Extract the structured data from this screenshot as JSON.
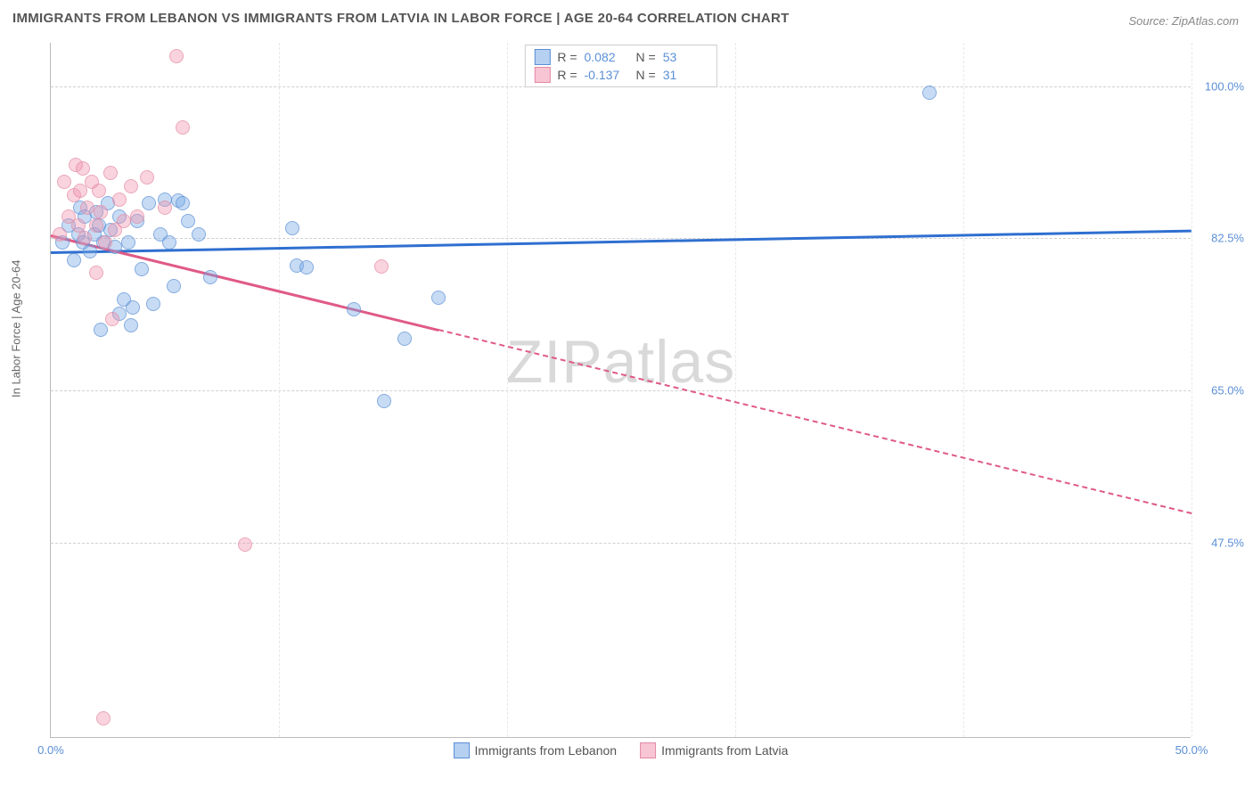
{
  "title": "IMMIGRANTS FROM LEBANON VS IMMIGRANTS FROM LATVIA IN LABOR FORCE | AGE 20-64 CORRELATION CHART",
  "source": "Source: ZipAtlas.com",
  "watermark": "ZIPatlas",
  "yaxis_title": "In Labor Force | Age 20-64",
  "chart": {
    "type": "scatter",
    "background_color": "#ffffff",
    "grid_color": "#d0d0d0",
    "axis_color": "#bbbbbb",
    "label_color": "#5b8fd6",
    "title_color": "#555555",
    "title_fontsize": 15,
    "label_fontsize": 13,
    "xlim": [
      0,
      50
    ],
    "ylim": [
      25,
      105
    ],
    "xticks": [
      0,
      10,
      20,
      30,
      40,
      50
    ],
    "xtick_labels": [
      "0.0%",
      "",
      "",
      "",
      "",
      "50.0%"
    ],
    "yticks": [
      47.5,
      65.0,
      82.5,
      100.0
    ],
    "ytick_labels": [
      "47.5%",
      "65.0%",
      "82.5%",
      "100.0%"
    ],
    "marker_size": 16,
    "series": [
      {
        "name": "Immigrants from Lebanon",
        "color_fill": "rgba(120,170,230,0.55)",
        "color_stroke": "#5b8fd6",
        "trend_color": "#2f6fd0",
        "R": "0.082",
        "N": "53",
        "trend": {
          "x1": 0,
          "y1": 81.0,
          "x2": 50,
          "y2": 83.5,
          "solid_until_x": 50
        },
        "points": [
          [
            0.5,
            82
          ],
          [
            0.8,
            84
          ],
          [
            1.0,
            80
          ],
          [
            1.2,
            83
          ],
          [
            1.3,
            86
          ],
          [
            1.4,
            82
          ],
          [
            1.5,
            85
          ],
          [
            1.7,
            81
          ],
          [
            1.9,
            83
          ],
          [
            2.0,
            85.5
          ],
          [
            2.1,
            84
          ],
          [
            2.3,
            82
          ],
          [
            2.5,
            86.5
          ],
          [
            2.6,
            83.5
          ],
          [
            2.8,
            81.5
          ],
          [
            3.0,
            85
          ],
          [
            3.2,
            75.5
          ],
          [
            3.4,
            82
          ],
          [
            3.6,
            74.5
          ],
          [
            3.8,
            84.5
          ],
          [
            4.0,
            79
          ],
          [
            4.3,
            86.5
          ],
          [
            4.5,
            75
          ],
          [
            4.8,
            83
          ],
          [
            5.0,
            87
          ],
          [
            5.2,
            82
          ],
          [
            5.4,
            77
          ],
          [
            5.6,
            86.8
          ],
          [
            5.8,
            86.5
          ],
          [
            6.0,
            84.5
          ],
          [
            3.0,
            73.8
          ],
          [
            3.5,
            72.5
          ],
          [
            2.2,
            72
          ],
          [
            6.5,
            83
          ],
          [
            7.0,
            78
          ],
          [
            10.8,
            79.4
          ],
          [
            10.6,
            83.7
          ],
          [
            11.2,
            79.2
          ],
          [
            13.3,
            74.3
          ],
          [
            14.6,
            63.8
          ],
          [
            15.5,
            71.0
          ],
          [
            17.0,
            75.7
          ],
          [
            38.5,
            99.3
          ]
        ]
      },
      {
        "name": "Immigrants from Latvia",
        "color_fill": "rgba(240,150,175,0.55)",
        "color_stroke": "#e48aa5",
        "trend_color": "#e05a86",
        "R": "-0.137",
        "N": "31",
        "trend": {
          "x1": 0,
          "y1": 83.0,
          "x2": 50,
          "y2": 51.0,
          "solid_until_x": 17
        },
        "points": [
          [
            0.4,
            83
          ],
          [
            0.6,
            89
          ],
          [
            0.8,
            85
          ],
          [
            1.0,
            87.5
          ],
          [
            1.1,
            91
          ],
          [
            1.2,
            84
          ],
          [
            1.3,
            88
          ],
          [
            1.4,
            90.5
          ],
          [
            1.5,
            82.5
          ],
          [
            1.6,
            86
          ],
          [
            1.8,
            89
          ],
          [
            2.0,
            84
          ],
          [
            2.1,
            88
          ],
          [
            2.2,
            85.5
          ],
          [
            2.4,
            82
          ],
          [
            2.6,
            90
          ],
          [
            2.8,
            83.5
          ],
          [
            3.0,
            87
          ],
          [
            3.2,
            84.5
          ],
          [
            3.5,
            88.5
          ],
          [
            3.8,
            85
          ],
          [
            4.2,
            89.5
          ],
          [
            5.0,
            86
          ],
          [
            2.7,
            73.2
          ],
          [
            2.0,
            78.5
          ],
          [
            5.5,
            103.5
          ],
          [
            5.8,
            95.3
          ],
          [
            14.5,
            79.3
          ],
          [
            8.5,
            47.3
          ],
          [
            2.3,
            27.3
          ]
        ]
      }
    ]
  },
  "legend_top_labels": {
    "R": "R  =",
    "N": "N  ="
  },
  "legend_bottom": [
    {
      "label": "Immigrants from Lebanon",
      "fill": "rgba(120,170,230,0.55)",
      "stroke": "#5b8fd6"
    },
    {
      "label": "Immigrants from Latvia",
      "fill": "rgba(240,150,175,0.55)",
      "stroke": "#e48aa5"
    }
  ]
}
